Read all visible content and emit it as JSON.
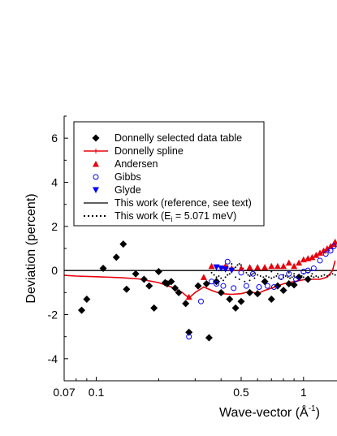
{
  "chart_data": {
    "type": "scatter",
    "title": "",
    "xlabel_main": "Wave-vector (Å",
    "xlabel_sup": "-1",
    "xlabel_close": ")",
    "ylabel": "Deviation (percent)",
    "x_scale": "log",
    "xlim": [
      0.07,
      1.45
    ],
    "ylim": [
      -5,
      7
    ],
    "x_ticks": [
      {
        "value": 0.07,
        "label": "0.07"
      },
      {
        "value": 0.1,
        "label": "0.1"
      },
      {
        "value": 0.5,
        "label": "0.5"
      },
      {
        "value": 1,
        "label": "1"
      }
    ],
    "y_ticks": [
      {
        "value": -4,
        "label": "-4"
      },
      {
        "value": -2,
        "label": "-2"
      },
      {
        "value": 0,
        "label": "0"
      },
      {
        "value": 2,
        "label": "2"
      },
      {
        "value": 4,
        "label": "4"
      },
      {
        "value": 6,
        "label": "6"
      }
    ],
    "legend_position": "top-left",
    "legend": {
      "donnelly_table": "Donnelly selected data table",
      "donnelly_spline": "Donnelly spline",
      "andersen": "Andersen",
      "gibbs": "Gibbs",
      "glyde": "Glyde",
      "this_work_ref": "This work (reference, see text)",
      "this_work_ei_pre": "This work (E",
      "this_work_ei_sub": "i",
      "this_work_ei_post": " = 5.071 meV)"
    },
    "colors": {
      "red": "#e8000b",
      "blue": "#0000ff",
      "black": "#000000"
    },
    "series": [
      {
        "key": "donnelly_table",
        "marker": "diamond",
        "points": [
          [
            0.085,
            -1.8
          ],
          [
            0.09,
            -1.3
          ],
          [
            0.108,
            0.1
          ],
          [
            0.125,
            0.6
          ],
          [
            0.135,
            1.2
          ],
          [
            0.14,
            -0.85
          ],
          [
            0.155,
            -0.15
          ],
          [
            0.17,
            -0.4
          ],
          [
            0.18,
            -0.7
          ],
          [
            0.19,
            -1.7
          ],
          [
            0.2,
            -0.05
          ],
          [
            0.215,
            -0.55
          ],
          [
            0.22,
            -0.6
          ],
          [
            0.23,
            -0.5
          ],
          [
            0.24,
            -0.8
          ],
          [
            0.25,
            -1.0
          ],
          [
            0.27,
            -1.5
          ],
          [
            0.28,
            -2.8
          ],
          [
            0.31,
            -0.7
          ],
          [
            0.34,
            -0.6
          ],
          [
            0.35,
            -3.05
          ],
          [
            0.38,
            -0.5
          ],
          [
            0.4,
            -1.0
          ],
          [
            0.44,
            -1.3
          ],
          [
            0.47,
            -1.7
          ],
          [
            0.5,
            -1.4
          ],
          [
            0.55,
            -1.0
          ],
          [
            0.6,
            -1.05
          ],
          [
            0.65,
            -0.5
          ],
          [
            0.7,
            -1.3
          ],
          [
            0.75,
            -0.7
          ],
          [
            0.8,
            -0.9
          ],
          [
            0.85,
            -0.6
          ],
          [
            0.9,
            -0.65
          ],
          [
            0.95,
            -0.3
          ],
          [
            1.05,
            -0.4
          ]
        ]
      },
      {
        "key": "andersen",
        "marker": "triangle-up",
        "points": [
          [
            0.28,
            -1.2
          ],
          [
            0.33,
            -0.3
          ],
          [
            0.36,
            0.2
          ],
          [
            0.42,
            0.2
          ],
          [
            0.45,
            0.1
          ],
          [
            0.5,
            0.1
          ],
          [
            0.55,
            0.15
          ],
          [
            0.6,
            0.15
          ],
          [
            0.65,
            0.15
          ],
          [
            0.7,
            0.2
          ],
          [
            0.75,
            0.2
          ],
          [
            0.8,
            0.2
          ],
          [
            0.85,
            0.35
          ],
          [
            0.9,
            0.2
          ],
          [
            0.95,
            0.35
          ],
          [
            1.0,
            0.5
          ],
          [
            1.05,
            0.55
          ],
          [
            1.1,
            0.6
          ],
          [
            1.15,
            0.7
          ],
          [
            1.2,
            0.8
          ],
          [
            1.25,
            0.9
          ],
          [
            1.3,
            1.0
          ],
          [
            1.35,
            1.1
          ],
          [
            1.4,
            1.2
          ],
          [
            1.42,
            1.3
          ]
        ]
      },
      {
        "key": "gibbs",
        "marker": "circle-open",
        "points": [
          [
            0.28,
            -3.0
          ],
          [
            0.32,
            -1.4
          ],
          [
            0.36,
            -0.5
          ],
          [
            0.38,
            -0.6
          ],
          [
            0.41,
            -0.7
          ],
          [
            0.43,
            0.4
          ],
          [
            0.46,
            -0.8
          ],
          [
            0.5,
            -0.1
          ],
          [
            0.53,
            -0.7
          ],
          [
            0.57,
            -0.15
          ],
          [
            0.61,
            -0.75
          ],
          [
            0.67,
            -0.7
          ],
          [
            0.72,
            -0.75
          ],
          [
            0.78,
            -0.3
          ],
          [
            0.85,
            -0.15
          ],
          [
            0.92,
            -0.4
          ],
          [
            1.0,
            -0.05
          ],
          [
            1.05,
            0.0
          ],
          [
            1.12,
            0.1
          ],
          [
            1.2,
            0.45
          ],
          [
            1.28,
            0.75
          ],
          [
            1.35,
            0.9
          ],
          [
            1.4,
            1.1
          ]
        ]
      },
      {
        "key": "glyde",
        "marker": "triangle-down",
        "points": [
          [
            0.38,
            0.15
          ],
          [
            0.4,
            0.1
          ],
          [
            0.42,
            0.05
          ],
          [
            0.45,
            0.0
          ]
        ]
      },
      {
        "key": "donnelly_spline",
        "marker": "line",
        "points": [
          [
            0.07,
            -0.22
          ],
          [
            0.08,
            -0.25
          ],
          [
            0.1,
            -0.28
          ],
          [
            0.13,
            -0.32
          ],
          [
            0.16,
            -0.38
          ],
          [
            0.2,
            -0.55
          ],
          [
            0.23,
            -0.75
          ],
          [
            0.26,
            -1.0
          ],
          [
            0.28,
            -1.25
          ],
          [
            0.3,
            -1.0
          ],
          [
            0.33,
            -0.75
          ],
          [
            0.36,
            -0.9
          ],
          [
            0.4,
            -1.05
          ],
          [
            0.45,
            -1.08
          ],
          [
            0.5,
            -1.05
          ],
          [
            0.55,
            -0.95
          ],
          [
            0.6,
            -1.05
          ],
          [
            0.65,
            -0.9
          ],
          [
            0.7,
            -0.8
          ],
          [
            0.75,
            -0.7
          ],
          [
            0.8,
            -0.6
          ],
          [
            0.9,
            -0.5
          ],
          [
            1.0,
            -0.42
          ],
          [
            1.1,
            -0.4
          ],
          [
            1.2,
            -0.4
          ],
          [
            1.3,
            -0.3
          ],
          [
            1.38,
            0.0
          ],
          [
            1.42,
            0.45
          ]
        ]
      },
      {
        "key": "this_work_ref",
        "marker": "hline",
        "points": [
          [
            0.07,
            0
          ],
          [
            1.45,
            0
          ]
        ]
      },
      {
        "key": "this_work_ei",
        "marker": "dots",
        "points": [
          [
            0.36,
            -0.1
          ],
          [
            0.37,
            -0.2
          ],
          [
            0.38,
            -0.3
          ],
          [
            0.39,
            -0.25
          ],
          [
            0.4,
            -0.35
          ],
          [
            0.41,
            -0.45
          ],
          [
            0.42,
            -0.3
          ],
          [
            0.43,
            -0.2
          ],
          [
            0.44,
            -0.15
          ],
          [
            0.45,
            -0.05
          ],
          [
            0.46,
            0.05
          ],
          [
            0.47,
            0.15
          ],
          [
            0.48,
            0.25
          ],
          [
            0.49,
            0.3
          ],
          [
            0.5,
            0.25
          ],
          [
            0.51,
            0.1
          ],
          [
            0.52,
            0.0
          ],
          [
            0.53,
            -0.1
          ],
          [
            0.54,
            -0.2
          ],
          [
            0.55,
            -0.25
          ],
          [
            0.56,
            -0.2
          ],
          [
            0.57,
            -0.15
          ],
          [
            0.58,
            -0.1
          ],
          [
            0.6,
            -0.2
          ],
          [
            0.62,
            -0.25
          ],
          [
            0.64,
            -0.3
          ],
          [
            0.66,
            -0.25
          ],
          [
            0.68,
            -0.3
          ],
          [
            0.7,
            -0.35
          ],
          [
            0.72,
            -0.3
          ],
          [
            0.74,
            -0.25
          ],
          [
            0.76,
            -0.35
          ],
          [
            0.78,
            -0.4
          ],
          [
            0.8,
            -0.3
          ],
          [
            0.82,
            -0.25
          ],
          [
            0.84,
            -0.3
          ],
          [
            0.86,
            -0.35
          ],
          [
            0.88,
            -0.3
          ],
          [
            0.9,
            -0.25
          ],
          [
            0.92,
            -0.3
          ],
          [
            0.95,
            -0.3
          ],
          [
            0.98,
            -0.25
          ],
          [
            1.0,
            -0.3
          ],
          [
            1.03,
            -0.35
          ],
          [
            1.06,
            -0.3
          ],
          [
            1.09,
            -0.25
          ],
          [
            1.12,
            -0.3
          ],
          [
            1.15,
            -0.25
          ],
          [
            1.18,
            -0.3
          ],
          [
            1.22,
            -0.25
          ],
          [
            1.26,
            -0.2
          ],
          [
            1.3,
            -0.25
          ],
          [
            1.34,
            -0.2
          ],
          [
            1.38,
            -0.15
          ],
          [
            1.42,
            -0.2
          ],
          [
            0.39,
            0.0
          ],
          [
            0.41,
            0.1
          ],
          [
            0.43,
            0.2
          ],
          [
            0.45,
            0.3
          ],
          [
            0.47,
            -0.3
          ],
          [
            0.49,
            -0.4
          ],
          [
            0.52,
            -0.5
          ],
          [
            0.55,
            -0.45
          ],
          [
            0.58,
            -0.35
          ],
          [
            0.62,
            0.0
          ],
          [
            0.66,
            0.05
          ],
          [
            0.7,
            -0.05
          ],
          [
            0.75,
            -0.15
          ],
          [
            0.8,
            -0.2
          ],
          [
            0.85,
            -0.1
          ],
          [
            0.9,
            -0.15
          ],
          [
            0.95,
            -0.2
          ],
          [
            1.0,
            -0.15
          ],
          [
            1.05,
            -0.1
          ],
          [
            1.1,
            -0.15
          ]
        ]
      }
    ]
  }
}
